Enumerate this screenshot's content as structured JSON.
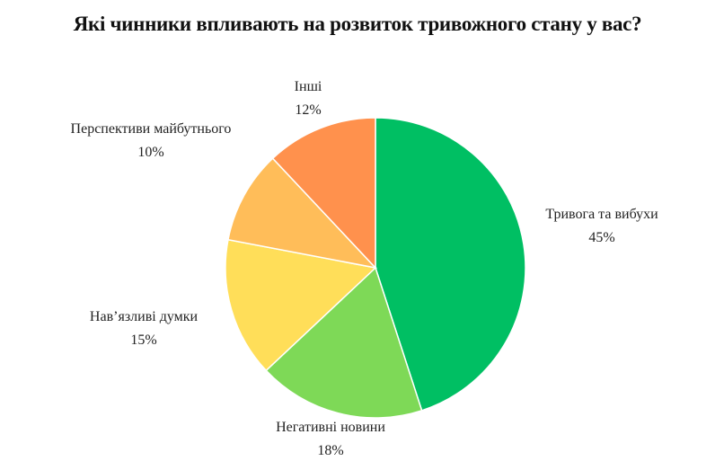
{
  "chart_data": {
    "type": "pie",
    "title": "Які чинники впливають на розвиток тривожного стану у вас?",
    "start": "top",
    "direction": "clockwise",
    "slices": [
      {
        "label": "Тривога та вибухи",
        "value": 45,
        "value_label": "45%",
        "color": "#00BF63"
      },
      {
        "label": "Негативні новини",
        "value": 18,
        "value_label": "18%",
        "color": "#7ED957"
      },
      {
        "label": "Нав’язливі думки",
        "value": 15,
        "value_label": "15%",
        "color": "#FFDE59"
      },
      {
        "label": "Перспективи майбутнього",
        "value": 10,
        "value_label": "10%",
        "color": "#FFBD59"
      },
      {
        "label": "Інші",
        "value": 12,
        "value_label": "12%",
        "color": "#FF914D"
      }
    ]
  }
}
